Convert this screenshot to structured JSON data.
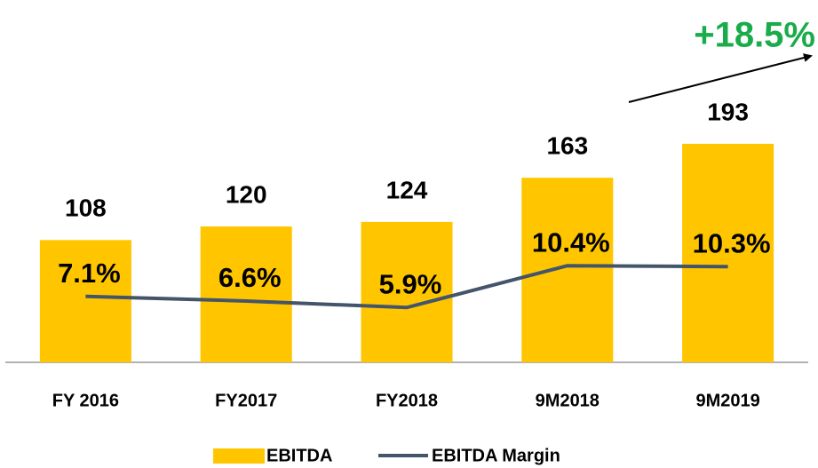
{
  "chart_data": {
    "type": "bar",
    "categories": [
      "FY 2016",
      "FY2017",
      "FY2018",
      "9M2018",
      "9M2019"
    ],
    "series": [
      {
        "name": "EBITDA",
        "type": "bar",
        "color": "#FFC600",
        "values": [
          108,
          120,
          124,
          163,
          193
        ]
      },
      {
        "name": "EBITDA Margin",
        "type": "line",
        "axis": "y2",
        "color": "#44546A",
        "values": [
          7.1,
          6.6,
          5.9,
          10.4,
          10.3
        ],
        "value_labels": [
          "7.1%",
          "6.6%",
          "5.9%",
          "10.4%",
          "10.3%"
        ]
      }
    ],
    "ylim": [
      0,
      320
    ],
    "y2lim": [
      0,
      39
    ],
    "annotations": [
      "+18.5%"
    ],
    "annotation_color": "#1AAB4B",
    "legend": "bottom"
  }
}
